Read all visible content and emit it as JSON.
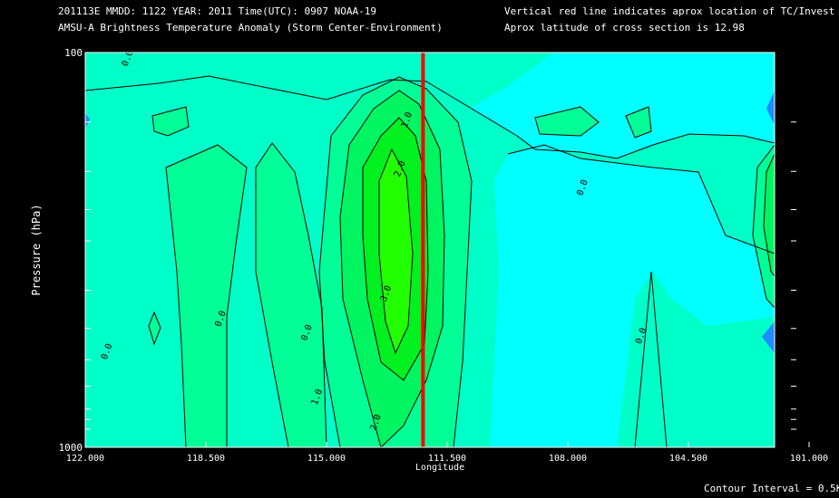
{
  "header": {
    "line1": "201113E  MMDD: 1122 YEAR: 2011 Time(UTC): 0907 NOAA-19",
    "line2": "AMSU-A Brightness Temperature Anomaly (Storm Center-Environment)",
    "line3": "Vertical red line indicates aprox location of TC/Invest",
    "line4": "Aprox latitude of cross section is 12.98"
  },
  "footer": {
    "contour_interval": "Contour Interval = 0.5K"
  },
  "chart_data": {
    "type": "contour",
    "title": "AMSU-A Brightness Temperature Anomaly (Storm Center-Environment)",
    "xlabel": "Longitude",
    "ylabel": "Pressure (hPa)",
    "x_reversed": true,
    "xlim": [
      122.0,
      101.0
    ],
    "ylim": [
      1000,
      100
    ],
    "y_scale": "log",
    "xticks": [
      {
        "value": 122.0,
        "label": "122.000"
      },
      {
        "value": 118.5,
        "label": "118.500"
      },
      {
        "value": 115.0,
        "label": "115.000"
      },
      {
        "value": 111.5,
        "label": "111.500"
      },
      {
        "value": 108.0,
        "label": "108.000"
      },
      {
        "value": 104.5,
        "label": "104.500"
      },
      {
        "value": 101.0,
        "label": "101.000"
      }
    ],
    "yticks": [
      {
        "value": 100,
        "label": "100"
      },
      {
        "value": 1000,
        "label": "1000"
      }
    ],
    "y_minor_ticks": [
      150,
      200,
      250,
      300,
      400,
      500,
      600,
      700,
      800,
      850,
      900
    ],
    "contour_interval": 0.5,
    "storm_longitude": 112.2,
    "storm_line_color": "#ff0000",
    "fill_colors": {
      "neg_2": "#1f8cff",
      "neg_1": "#2ab4ff",
      "neg_0": "#00ffff",
      "pos_0": "#00ffc8",
      "pos_1": "#00ff96",
      "pos_2": "#00f560",
      "pos_3": "#00f020",
      "pos_4": "#22ff00",
      "dry": "#000000"
    },
    "contour_labels": [
      {
        "text": "0.0",
        "lon": 120.7,
        "p": 104
      },
      {
        "text": "1.0",
        "lon": 112.6,
        "p": 149
      },
      {
        "text": "2.0",
        "lon": 112.8,
        "p": 198
      },
      {
        "text": "0.0",
        "lon": 107.5,
        "p": 221
      },
      {
        "text": "1.0",
        "lon": 101.6,
        "p": 328
      },
      {
        "text": "3.0",
        "lon": 113.2,
        "p": 410
      },
      {
        "text": "0.0",
        "lon": 118.0,
        "p": 475
      },
      {
        "text": "0.0",
        "lon": 115.5,
        "p": 515
      },
      {
        "text": "0.0",
        "lon": 121.3,
        "p": 575
      },
      {
        "text": "0.0",
        "lon": 105.8,
        "p": 525
      },
      {
        "text": "0.0",
        "lon": 101.6,
        "p": 545
      },
      {
        "text": "1.0",
        "lon": 115.2,
        "p": 750
      },
      {
        "text": "2.0",
        "lon": 113.5,
        "p": 870
      }
    ]
  }
}
